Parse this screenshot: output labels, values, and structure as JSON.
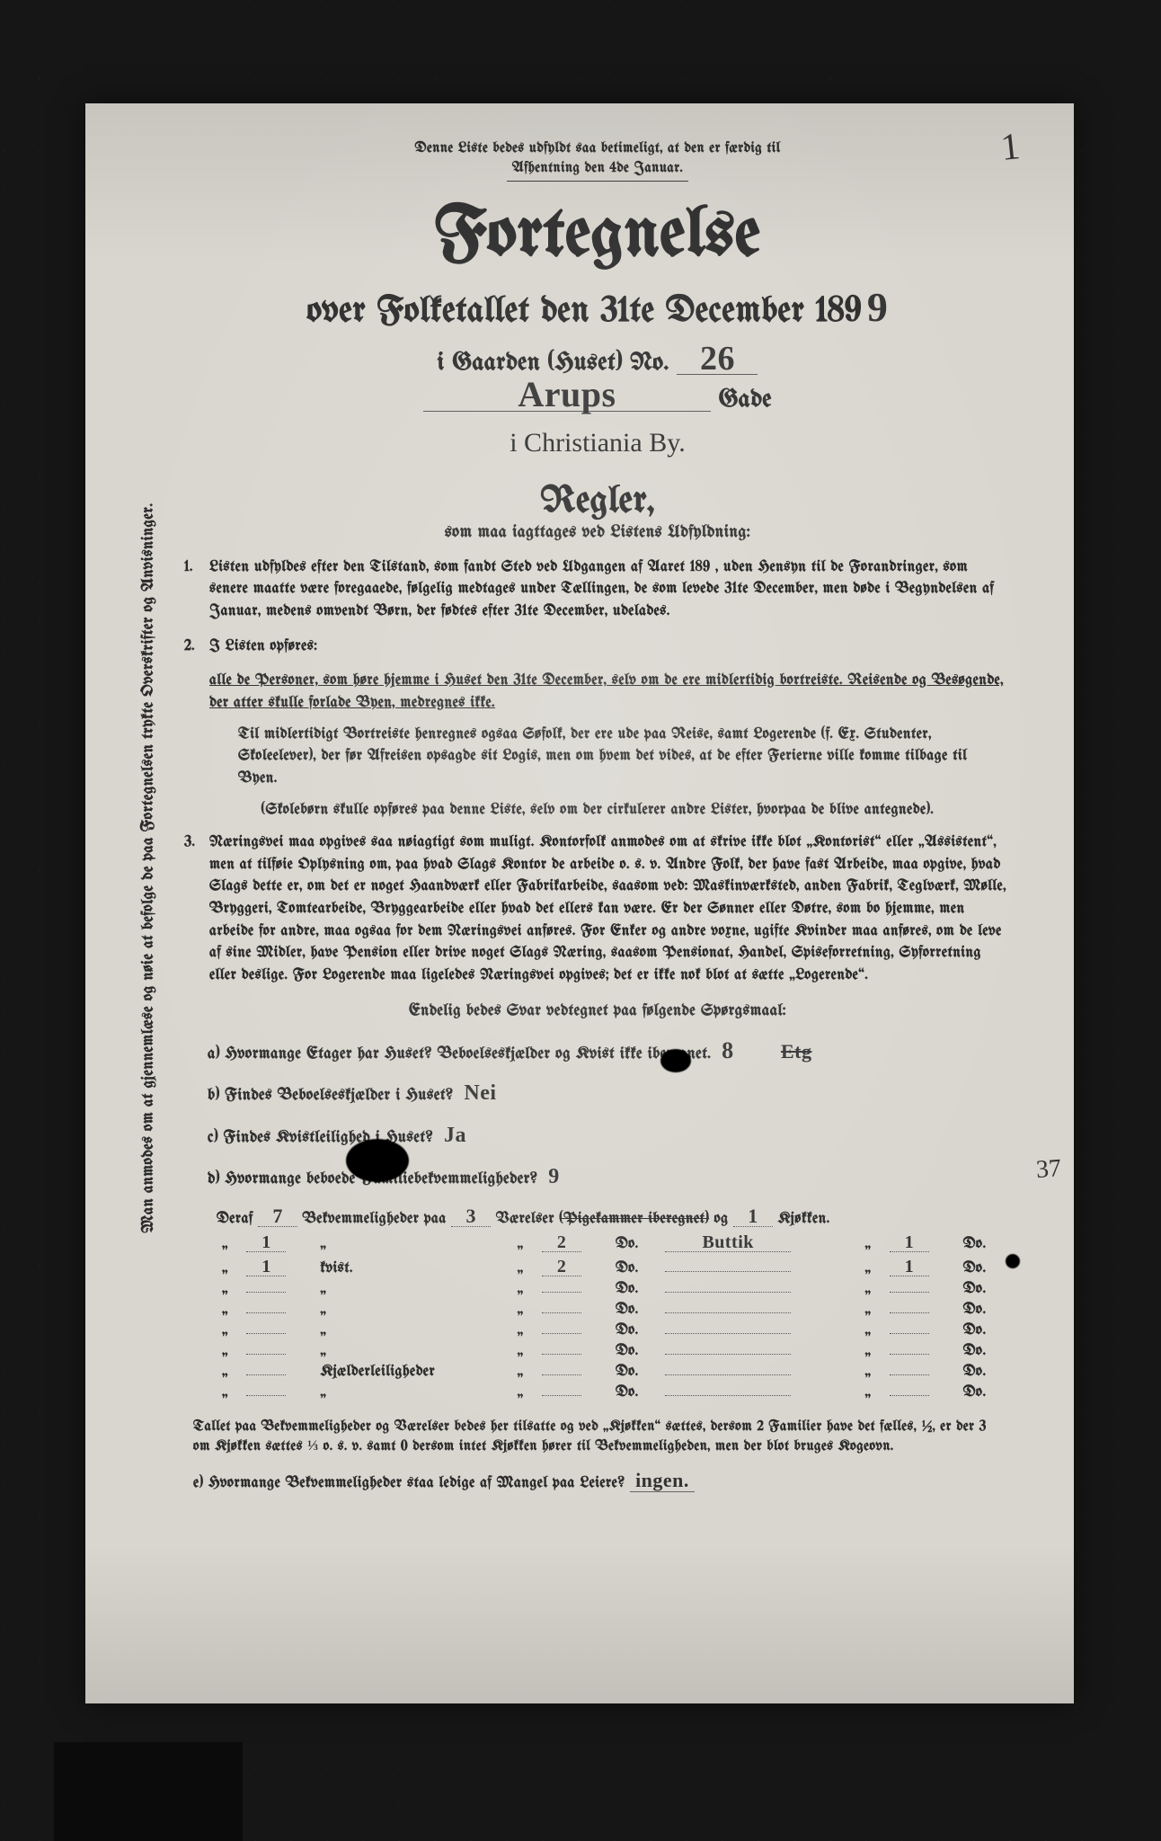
{
  "colors": {
    "page_bg": "#d9d6cf",
    "scan_bg": "#161616",
    "ink": "#2b2b2b",
    "hand_ink": "#333333",
    "rule": "#555555"
  },
  "typography": {
    "title_fontsize_pt": 58,
    "subtitle_fontsize_pt": 30,
    "body_fontsize_pt": 13,
    "blackletter_family": "Old English Text MT"
  },
  "corner_mark": "1",
  "header": {
    "note_line1": "Denne Liste bedes udfyldt saa betimeligt, at den er færdig til",
    "note_line2": "Afhentning den 4de Januar."
  },
  "title": "Fortegnelse",
  "subtitle_prefix": "over Folketallet den 31te December 189",
  "year_last_digit": "9",
  "gaarden": {
    "label_before": "i Gaarden (Huset) No.",
    "no": "26",
    "street": "Arups",
    "gade_label": "Gade"
  },
  "city": "i Christiania By.",
  "regler": {
    "heading": "Regler,",
    "sub": "som maa iagttages ved Listens Udfyldning:"
  },
  "sidebar": "Man anmodes om at gjennemlæse og nøie at befolge de paa Fortegnelsen trykte Overskrifter og Anvisninger.",
  "rules": {
    "r1": "Listen udfyldes efter den Tilstand, som fandt Sted ved Udgangen af Aaret 189 , uden Hensyn til de Forandringer, som senere maatte være foregaaede, følgelig medtages under Tællingen, de som levede 31te December, men døde i Begyndelsen af Januar, medens omvendt Børn, der fødtes efter 31te December, udelades.",
    "r2_lead": "I Listen opføres:",
    "r2_a": "alle de Personer, som høre hjemme i Huset den 31te December, selv om de ere midlertidig bortreiste.  Reisende og Besøgende, der atter skulle forlade Byen, medregnes ikke.",
    "r2_b": "Til midlertidigt Bortreiste henregnes ogsaa Søfolk, der ere ude paa Reise, samt Logerende (f. Ex. Studenter, Skoleelever), der før Afreisen opsagde sit Logis, men om hvem det vides, at de efter Ferierne ville komme tilbage til Byen.",
    "r2_c": "(Skolebørn skulle opføres paa denne Liste, selv om der cirkulerer andre Lister, hvorpaa de blive antegnede).",
    "r3": "Næringsvei maa opgives saa nøiagtigt som muligt.  Kontorfolk anmodes om at skrive ikke blot „Kontorist“ eller „Assistent“, men at tilføie Oplysning om, paa hvad Slags Kontor de arbeide o. s. v.  Andre Folk, der have fast Arbeide, maa opgive, hvad Slags dette er, om det er noget Haandværk eller Fabrikarbeide, saasom ved: Maskinværksted, anden Fabrik, Teglværk, Mølle, Bryggeri, Tomtearbeide, Bryggearbeide eller hvad det ellers kan være.  Er der Sønner eller Døtre, som bo hjemme, men arbeide for andre, maa ogsaa for dem Næringsvei anføres.  For Enker og andre voxne, ugifte Kvinder maa anføres, om de leve af sine Midler, have Pension eller drive noget Slags Næring, saasom Pensionat, Handel, Spiseforretning, Syforretning eller deslige.  For Logerende maa ligeledes Næringsvei opgives; det er ikke nok blot at sætte „Logerende“."
  },
  "questions": {
    "heading": "Endelig bedes Svar vedtegnet paa følgende Spørgsmaal:",
    "a_q": "a) Hvormange Etager har Huset?  Beboelseskjælder og Kvist ikke iberegnet.",
    "a_ans": "8",
    "a_struck": "Etg",
    "b_q": "b) Findes Beboelseskjælder i Huset?",
    "b_ans": "Nei",
    "c_q": "c) Findes Kvistleilighed i Huset?",
    "c_ans": "Ja",
    "d_q": "d) Hvormange beboede Familiebekvemmeligheder?",
    "d_ans": "9"
  },
  "deraf": {
    "lead": "Deraf",
    "count": "7",
    "label1": "Bekvemmeligheder paa",
    "vaer": "3",
    "label2": "Værelser",
    "struck": "(Pigekammer iberegnet)",
    "og": "og",
    "kj": "1",
    "label3": "Kjøkken."
  },
  "table": {
    "columns": [
      "n1",
      "unit1",
      "n2",
      "unit2",
      "extra",
      "n3",
      "unit3"
    ],
    "unit_ditto": "„",
    "unit_do": "Do.",
    "rows": [
      {
        "n1": "1",
        "unit1": "„",
        "n2": "2",
        "unit2": "Do.",
        "extra": "Buttik",
        "n3": "1",
        "unit3": "Do."
      },
      {
        "n1": "1",
        "unit1": "kvist.",
        "n2": "2",
        "unit2": "Do.",
        "extra": "",
        "n3": "1",
        "unit3": "Do."
      },
      {
        "n1": "",
        "unit1": "„",
        "n2": "",
        "unit2": "Do.",
        "extra": "",
        "n3": "",
        "unit3": "Do."
      },
      {
        "n1": "",
        "unit1": "„",
        "n2": "",
        "unit2": "Do.",
        "extra": "",
        "n3": "",
        "unit3": "Do."
      },
      {
        "n1": "",
        "unit1": "„",
        "n2": "",
        "unit2": "Do.",
        "extra": "",
        "n3": "",
        "unit3": "Do."
      },
      {
        "n1": "",
        "unit1": "„",
        "n2": "",
        "unit2": "Do.",
        "extra": "",
        "n3": "",
        "unit3": "Do."
      }
    ],
    "kj_row": {
      "n1": "",
      "unit1": "Kjælderleiligheder",
      "n2": "",
      "unit2": "Do.",
      "extra": "",
      "n3": "",
      "unit3": "Do."
    },
    "last_row": {
      "n1": "",
      "unit1": "„",
      "n2": "",
      "unit2": "Do.",
      "extra": "",
      "n3": "",
      "unit3": "Do."
    }
  },
  "footnote": "Tallet paa Bekvemmeligheder og Værelser bedes her tilsatte og ved „Kjøkken“ sættes, dersom 2 Familier have det fælles, ½, er der 3 om Kjøkken sættes ⅓ o. s. v. samt 0 dersom intet Kjøkken hører til Bekvemmeligheden, men der blot bruges Kogeovn.",
  "q_e": {
    "q": "e) Hvormange Bekvemmeligheder staa ledige af Mangel paa Leiere?",
    "ans": "ingen."
  },
  "margin_note": "37"
}
